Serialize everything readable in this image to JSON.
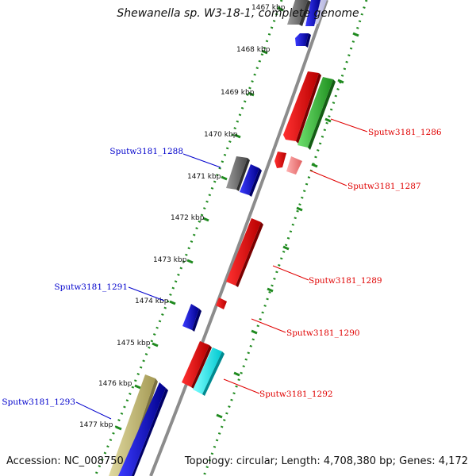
{
  "title": "Shewanella sp. W3-18-1, complete genome",
  "accession": "Accession: NC_008750",
  "summary": "Topology: circular; Length: 4,708,380 bp; Genes: 4,172",
  "colors": {
    "backbone": "#8c8c8c",
    "track_dots": "#1f8a1f",
    "forward_label": "#e00000",
    "reverse_label": "#0000cc"
  },
  "ticks": [
    "1467 kbp",
    "1468 kbp",
    "1469 kbp",
    "1470 kbp",
    "1471 kbp",
    "1472 kbp",
    "1473 kbp",
    "1474 kbp",
    "1475 kbp",
    "1476 kbp",
    "1477 kbp"
  ],
  "gene_labels": {
    "forward": [
      "Sputw3181_1286",
      "Sputw3181_1287",
      "Sputw3181_1289",
      "Sputw3181_1290",
      "Sputw3181_1292"
    ],
    "reverse": [
      "Sputw3181_1288",
      "Sputw3181_1291",
      "Sputw3181_1293"
    ]
  }
}
